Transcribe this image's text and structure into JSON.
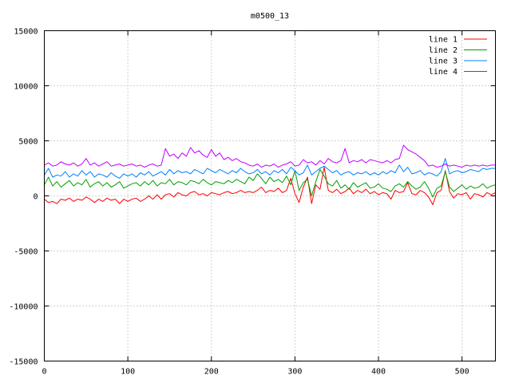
{
  "chart_data": {
    "type": "line",
    "title": "m0500_13",
    "xlabel": "",
    "ylabel": "",
    "xlim": [
      0,
      540
    ],
    "ylim": [
      -15000,
      15000
    ],
    "x_ticks": [
      0,
      100,
      200,
      300,
      400,
      500
    ],
    "y_ticks": [
      -15000,
      -10000,
      -5000,
      0,
      5000,
      10000,
      15000
    ],
    "grid": true,
    "legend_position": "top-right",
    "series": [
      {
        "name": "line 1",
        "color": "#ff0000",
        "x": [
          0,
          5,
          10,
          15,
          20,
          25,
          30,
          35,
          40,
          45,
          50,
          55,
          60,
          65,
          70,
          75,
          80,
          85,
          90,
          95,
          100,
          105,
          110,
          115,
          120,
          125,
          130,
          135,
          140,
          145,
          150,
          155,
          160,
          165,
          170,
          175,
          180,
          185,
          190,
          195,
          200,
          205,
          210,
          215,
          220,
          225,
          230,
          235,
          240,
          245,
          250,
          255,
          260,
          265,
          270,
          275,
          280,
          285,
          290,
          295,
          300,
          305,
          310,
          315,
          320,
          325,
          330,
          335,
          340,
          345,
          350,
          355,
          360,
          365,
          370,
          375,
          380,
          385,
          390,
          395,
          400,
          405,
          410,
          415,
          420,
          425,
          430,
          435,
          440,
          445,
          450,
          455,
          460,
          465,
          470,
          475,
          480,
          485,
          490,
          495,
          500,
          505,
          510,
          515,
          520,
          525,
          530,
          535,
          540
        ],
        "values": [
          -300,
          -600,
          -500,
          -700,
          -300,
          -400,
          -200,
          -500,
          -300,
          -400,
          -100,
          -300,
          -600,
          -300,
          -500,
          -200,
          -400,
          -300,
          -700,
          -300,
          -500,
          -300,
          -200,
          -500,
          -300,
          0,
          -300,
          100,
          -300,
          100,
          200,
          -100,
          300,
          100,
          0,
          300,
          400,
          100,
          200,
          0,
          300,
          200,
          100,
          300,
          400,
          200,
          300,
          500,
          300,
          400,
          300,
          500,
          800,
          300,
          500,
          400,
          700,
          300,
          500,
          1600,
          200,
          -600,
          800,
          1700,
          -700,
          1000,
          600,
          2600,
          500,
          300,
          600,
          200,
          400,
          700,
          200,
          500,
          300,
          600,
          200,
          400,
          100,
          300,
          200,
          -300,
          500,
          300,
          400,
          1200,
          200,
          100,
          500,
          300,
          -100,
          -800,
          300,
          500,
          2300,
          400,
          -200,
          200,
          100,
          300,
          -300,
          200,
          100,
          -100,
          300,
          100,
          300
        ]
      },
      {
        "name": "line 2",
        "color": "#00a000",
        "x": [
          0,
          5,
          10,
          15,
          20,
          25,
          30,
          35,
          40,
          45,
          50,
          55,
          60,
          65,
          70,
          75,
          80,
          85,
          90,
          95,
          100,
          105,
          110,
          115,
          120,
          125,
          130,
          135,
          140,
          145,
          150,
          155,
          160,
          165,
          170,
          175,
          180,
          185,
          190,
          195,
          200,
          205,
          210,
          215,
          220,
          225,
          230,
          235,
          240,
          245,
          250,
          255,
          260,
          265,
          270,
          275,
          280,
          285,
          290,
          295,
          300,
          305,
          310,
          315,
          320,
          325,
          330,
          335,
          340,
          345,
          350,
          355,
          360,
          365,
          370,
          375,
          380,
          385,
          390,
          395,
          400,
          405,
          410,
          415,
          420,
          425,
          430,
          435,
          440,
          445,
          450,
          455,
          460,
          465,
          470,
          475,
          480,
          485,
          490,
          495,
          500,
          505,
          510,
          515,
          520,
          525,
          530,
          535,
          540
        ],
        "values": [
          1000,
          1700,
          900,
          1300,
          800,
          1100,
          1400,
          900,
          1200,
          1000,
          1500,
          800,
          1100,
          1300,
          900,
          1200,
          800,
          1000,
          1300,
          700,
          900,
          1100,
          1200,
          900,
          1300,
          1000,
          1400,
          900,
          1200,
          1100,
          1500,
          1000,
          1300,
          1200,
          1000,
          1400,
          1300,
          1100,
          1500,
          1200,
          1000,
          1300,
          1200,
          1100,
          1400,
          1200,
          1500,
          1300,
          1100,
          1700,
          1400,
          2000,
          1600,
          1100,
          1700,
          1300,
          1500,
          1200,
          1800,
          1000,
          2300,
          500,
          1200,
          1500,
          0,
          1300,
          2400,
          1800,
          1100,
          900,
          1400,
          700,
          1000,
          600,
          1200,
          800,
          1000,
          1200,
          700,
          800,
          1100,
          700,
          600,
          400,
          900,
          1100,
          800,
          1300,
          900,
          600,
          800,
          1300,
          700,
          -100,
          700,
          900,
          2200,
          800,
          400,
          700,
          1000,
          600,
          900,
          700,
          800,
          1100,
          700,
          900,
          1000
        ]
      },
      {
        "name": "line 3",
        "color": "#0080ff",
        "x": [
          0,
          5,
          10,
          15,
          20,
          25,
          30,
          35,
          40,
          45,
          50,
          55,
          60,
          65,
          70,
          75,
          80,
          85,
          90,
          95,
          100,
          105,
          110,
          115,
          120,
          125,
          130,
          135,
          140,
          145,
          150,
          155,
          160,
          165,
          170,
          175,
          180,
          185,
          190,
          195,
          200,
          205,
          210,
          215,
          220,
          225,
          230,
          235,
          240,
          245,
          250,
          255,
          260,
          265,
          270,
          275,
          280,
          285,
          290,
          295,
          300,
          305,
          310,
          315,
          320,
          325,
          330,
          335,
          340,
          345,
          350,
          355,
          360,
          365,
          370,
          375,
          380,
          385,
          390,
          395,
          400,
          405,
          410,
          415,
          420,
          425,
          430,
          435,
          440,
          445,
          450,
          455,
          460,
          465,
          470,
          475,
          480,
          485,
          490,
          495,
          500,
          505,
          510,
          515,
          520,
          525,
          530,
          535,
          540
        ],
        "values": [
          1900,
          2500,
          1700,
          1900,
          1800,
          2200,
          1700,
          2000,
          1800,
          2300,
          1900,
          2200,
          1700,
          2000,
          1900,
          1700,
          2100,
          1800,
          1600,
          2000,
          1800,
          2000,
          1700,
          2100,
          1900,
          2200,
          1800,
          2000,
          2200,
          1900,
          2400,
          2000,
          2300,
          2100,
          2200,
          2000,
          2400,
          2200,
          2000,
          2500,
          2300,
          2100,
          2400,
          2200,
          2000,
          2300,
          2100,
          2500,
          2200,
          2000,
          2100,
          2400,
          2000,
          2200,
          1900,
          2300,
          2100,
          2400,
          2000,
          2600,
          2300,
          1900,
          2100,
          2800,
          1900,
          2200,
          2500,
          2700,
          2400,
          2100,
          2300,
          1900,
          2100,
          2200,
          1900,
          2100,
          2000,
          2200,
          1900,
          2100,
          1900,
          2200,
          2000,
          2300,
          2100,
          2800,
          2200,
          2600,
          2000,
          2100,
          2300,
          1900,
          2100,
          2000,
          1800,
          2200,
          3400,
          2000,
          2200,
          2300,
          2100,
          2200,
          2400,
          2300,
          2200,
          2500,
          2400,
          2500,
          2500
        ]
      },
      {
        "name": "line 4",
        "color": "#c000ff",
        "x": [
          0,
          5,
          10,
          15,
          20,
          25,
          30,
          35,
          40,
          45,
          50,
          55,
          60,
          65,
          70,
          75,
          80,
          85,
          90,
          95,
          100,
          105,
          110,
          115,
          120,
          125,
          130,
          135,
          140,
          145,
          150,
          155,
          160,
          165,
          170,
          175,
          180,
          185,
          190,
          195,
          200,
          205,
          210,
          215,
          220,
          225,
          230,
          235,
          240,
          245,
          250,
          255,
          260,
          265,
          270,
          275,
          280,
          285,
          290,
          295,
          300,
          305,
          310,
          315,
          320,
          325,
          330,
          335,
          340,
          345,
          350,
          355,
          360,
          365,
          370,
          375,
          380,
          385,
          390,
          395,
          400,
          405,
          410,
          415,
          420,
          425,
          430,
          435,
          440,
          445,
          450,
          455,
          460,
          465,
          470,
          475,
          480,
          485,
          490,
          495,
          500,
          505,
          510,
          515,
          520,
          525,
          530,
          535,
          540
        ],
        "values": [
          2800,
          3000,
          2700,
          2800,
          3100,
          2900,
          2800,
          3000,
          2700,
          2900,
          3400,
          2800,
          3000,
          2700,
          2900,
          3100,
          2700,
          2800,
          2900,
          2700,
          2800,
          2900,
          2700,
          2800,
          2600,
          2800,
          2900,
          2700,
          2800,
          4300,
          3600,
          3800,
          3400,
          3900,
          3600,
          4400,
          3900,
          4100,
          3700,
          3500,
          4200,
          3600,
          3900,
          3300,
          3500,
          3200,
          3400,
          3100,
          3000,
          2800,
          2700,
          2900,
          2600,
          2800,
          2700,
          2900,
          2600,
          2800,
          2900,
          3100,
          2700,
          2800,
          3300,
          3000,
          3100,
          2800,
          3200,
          2900,
          3400,
          3100,
          3000,
          3200,
          4300,
          3000,
          3200,
          3100,
          3300,
          3000,
          3300,
          3200,
          3100,
          3000,
          3200,
          3000,
          3300,
          3400,
          4600,
          4200,
          4000,
          3800,
          3500,
          3200,
          2700,
          2800,
          2600,
          2700,
          2900,
          2700,
          2800,
          2700,
          2600,
          2800,
          2700,
          2800,
          2700,
          2800,
          2700,
          2800,
          2800
        ]
      }
    ]
  }
}
